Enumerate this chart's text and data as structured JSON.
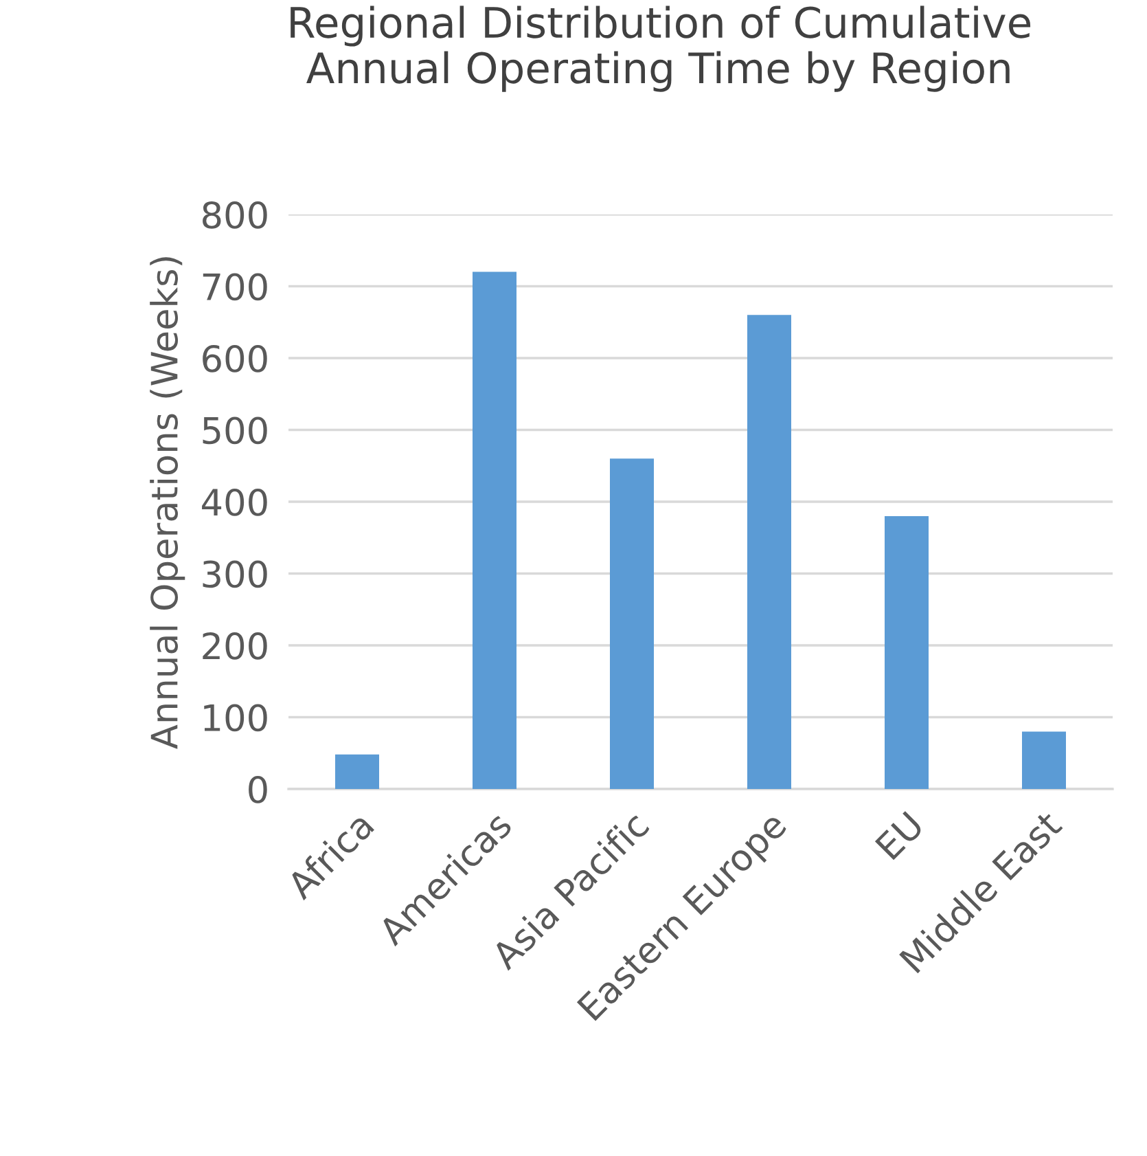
{
  "chart_data": {
    "type": "bar",
    "title": "Regional Distribution of Cumulative\nAnnual Operating Time by Region",
    "ylabel": "Annual Operations (Weeks)",
    "categories": [
      "Africa",
      "Americas",
      "Asia Pacific",
      "Eastern Europe",
      "EU",
      "Middle East"
    ],
    "values": [
      48,
      720,
      460,
      660,
      380,
      80
    ],
    "color": "#5b9bd5",
    "ylim": [
      0,
      800
    ],
    "yticks": [
      0,
      100,
      200,
      300,
      400,
      500,
      600,
      700,
      800
    ],
    "grid": "y",
    "legend": false
  }
}
